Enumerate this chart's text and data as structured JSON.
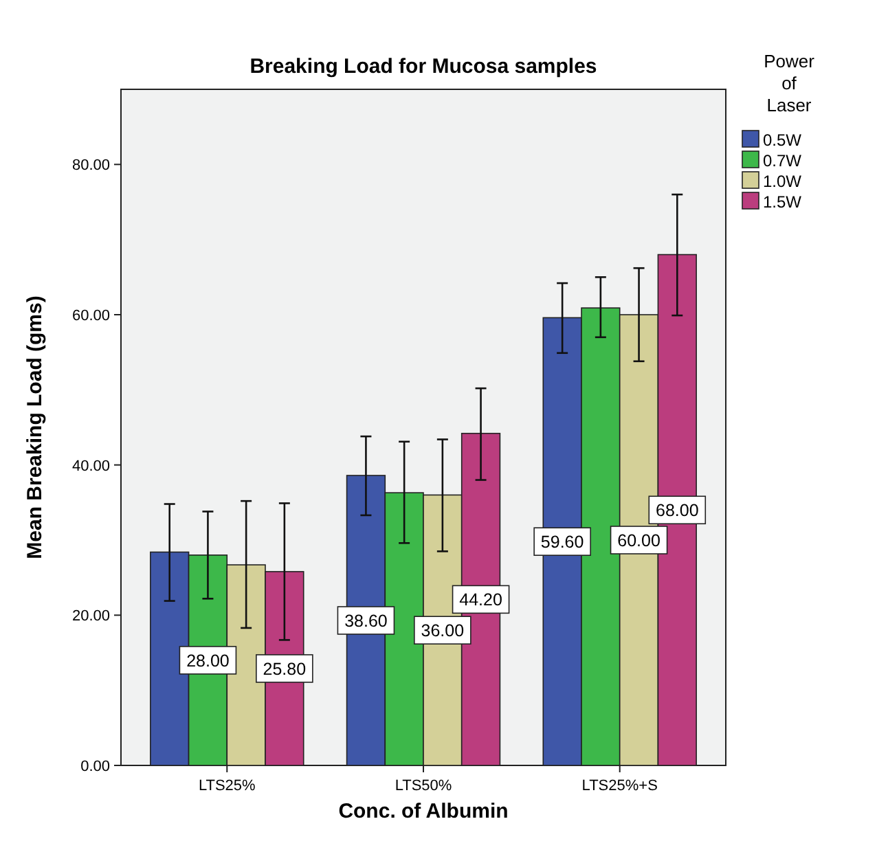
{
  "chart_data": {
    "type": "bar",
    "title": "Breaking Load for Mucosa samples",
    "xlabel": "Conc. of Albumin",
    "ylabel": "Mean Breaking Load (gms)",
    "legend_title": "Power of Laser",
    "legend": "right",
    "grid": false,
    "categories": [
      "LTS25%",
      "LTS50%",
      "LTS25%+S"
    ],
    "ylim": [
      0,
      90
    ],
    "yticks": [
      {
        "value": 0,
        "label": "0.00"
      },
      {
        "value": 20,
        "label": "20.00"
      },
      {
        "value": 40,
        "label": "40.00"
      },
      {
        "value": 60,
        "label": "60.00"
      },
      {
        "value": 80,
        "label": "80.00"
      }
    ],
    "series": [
      {
        "name": "0.5W",
        "color": "#3f57a8",
        "values": [
          28.4,
          38.6,
          59.6
        ],
        "value_labels": [
          null,
          "38.60",
          "59.60"
        ],
        "errors": [
          [
            21.9,
            34.8
          ],
          [
            33.3,
            43.8
          ],
          [
            54.9,
            64.2
          ]
        ]
      },
      {
        "name": "0.7W",
        "color": "#3db84a",
        "values": [
          28,
          36.3,
          60.9
        ],
        "value_labels": [
          "28.00",
          null,
          null
        ],
        "errors": [
          [
            22.2,
            33.8
          ],
          [
            29.6,
            43.1
          ],
          [
            57,
            65
          ]
        ]
      },
      {
        "name": "1.0W",
        "color": "#d4d098",
        "values": [
          26.7,
          36,
          60
        ],
        "value_labels": [
          null,
          "36.00",
          "60.00"
        ],
        "errors": [
          [
            18.3,
            35.2
          ],
          [
            28.5,
            43.4
          ],
          [
            53.8,
            66.2
          ]
        ]
      },
      {
        "name": "1.5W",
        "color": "#bb3d7e",
        "values": [
          25.8,
          44.2,
          68
        ],
        "value_labels": [
          "25.80",
          "44.20",
          "68.00"
        ],
        "errors": [
          [
            16.7,
            34.9
          ],
          [
            38,
            50.2
          ],
          [
            59.9,
            76
          ]
        ]
      }
    ]
  }
}
